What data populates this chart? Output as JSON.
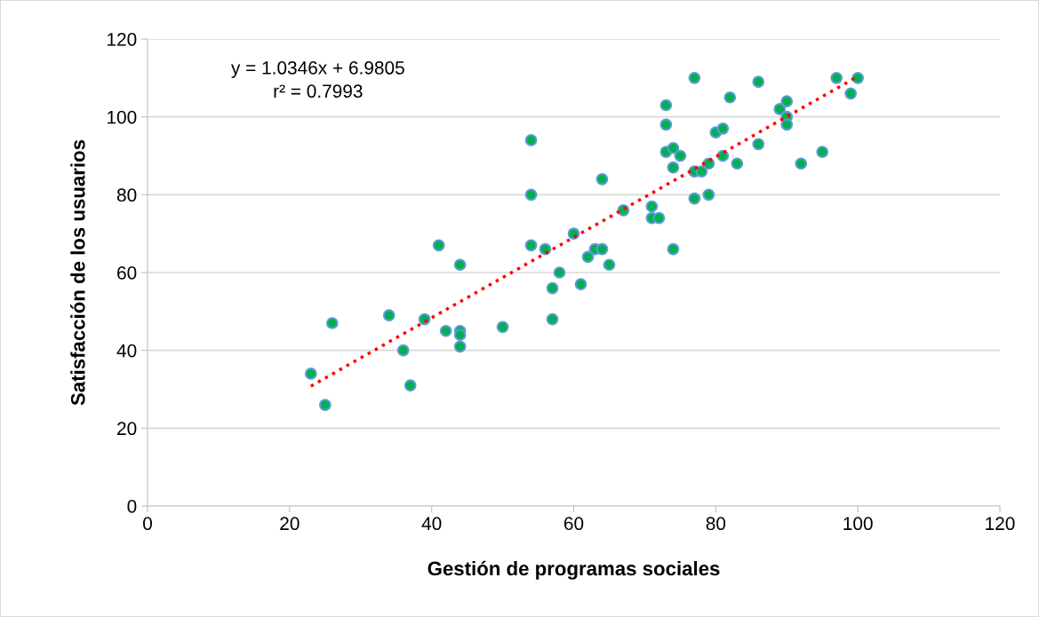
{
  "chart_data": {
    "type": "scatter",
    "xlabel": "Gestión de programas sociales",
    "ylabel": "Satisfacción de los usuarios",
    "annotations": [
      "y = 1.0346x + 6.9805",
      "r² = 0.7993"
    ],
    "xlim": [
      0,
      120
    ],
    "ylim": [
      0,
      120
    ],
    "xticks": [
      0,
      20,
      40,
      60,
      80,
      100,
      120
    ],
    "yticks": [
      0,
      20,
      40,
      60,
      80,
      100,
      120
    ],
    "grid": "y",
    "series": [
      {
        "color": "#00b050",
        "marker": "circle",
        "x": [
          23,
          25,
          26,
          34,
          36,
          37,
          39,
          41,
          42,
          44,
          44,
          44,
          44,
          50,
          54,
          54,
          54,
          56,
          57,
          57,
          58,
          60,
          61,
          62,
          63,
          64,
          64,
          65,
          67,
          71,
          71,
          72,
          73,
          73,
          73,
          74,
          74,
          74,
          75,
          77,
          77,
          77,
          78,
          79,
          79,
          80,
          81,
          81,
          82,
          83,
          86,
          86,
          89,
          90,
          90,
          90,
          92,
          95,
          97,
          99,
          100
        ],
        "values": [
          34,
          26,
          47,
          49,
          40,
          31,
          48,
          67,
          45,
          62,
          45,
          44,
          41,
          46,
          94,
          80,
          67,
          66,
          56,
          48,
          60,
          70,
          57,
          64,
          66,
          84,
          66,
          62,
          76,
          77,
          74,
          74,
          103,
          98,
          91,
          92,
          87,
          66,
          90,
          110,
          86,
          79,
          86,
          88,
          80,
          96,
          97,
          90,
          105,
          88,
          109,
          93,
          102,
          104,
          100,
          98,
          88,
          91,
          110,
          106,
          110
        ]
      },
      {
        "type": "line",
        "color": "#ff0000",
        "line_style": "dotted",
        "marker": "none",
        "x": [
          23,
          100
        ],
        "values": [
          30.8,
          110.4
        ]
      }
    ]
  }
}
